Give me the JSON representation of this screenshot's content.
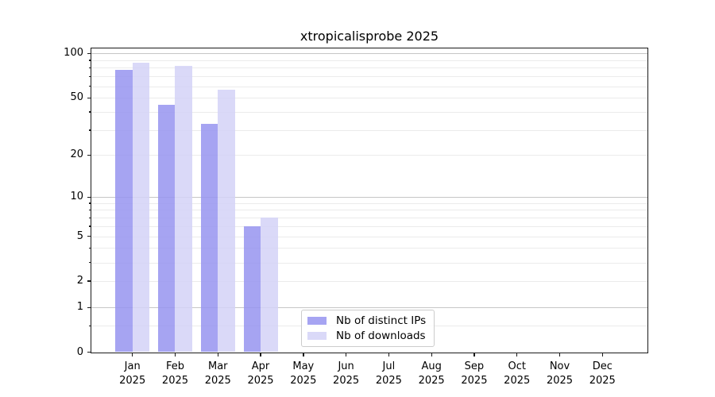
{
  "title": "xtropicalisprobe 2025",
  "chart_data": {
    "type": "bar",
    "title": "xtropicalisprobe 2025",
    "categories": [
      "Jan",
      "Feb",
      "Mar",
      "Apr",
      "May",
      "Jun",
      "Jul",
      "Aug",
      "Sep",
      "Oct",
      "Nov",
      "Dec"
    ],
    "x_tick_year": "2025",
    "series": [
      {
        "name": "Nb of distinct IPs",
        "color": "rgba(150,148,240,0.85)",
        "values": [
          78,
          45,
          33,
          6,
          0,
          0,
          0,
          0,
          0,
          0,
          0,
          0
        ]
      },
      {
        "name": "Nb of downloads",
        "color": "rgba(211,210,247,0.85)",
        "values": [
          87,
          82,
          57,
          7,
          0,
          0,
          0,
          0,
          0,
          0,
          0,
          0
        ]
      }
    ],
    "yscale": "log1p",
    "ylim": [
      0,
      107
    ],
    "yticks": [
      {
        "v": 100,
        "label": "100"
      },
      {
        "v": 50,
        "label": "50"
      },
      {
        "v": 20,
        "label": "20"
      },
      {
        "v": 10,
        "label": "10"
      },
      {
        "v": 5,
        "label": "5"
      },
      {
        "v": 2,
        "label": "2"
      },
      {
        "v": 1,
        "label": "1"
      },
      {
        "v": 0,
        "label": "0"
      }
    ],
    "yticks_minor": [
      0.5,
      3,
      4,
      6,
      7,
      8,
      9,
      30,
      40,
      60,
      70,
      80,
      90
    ],
    "grid": true,
    "grid_major_values": [
      1,
      10,
      100
    ],
    "grid_minor_values": [
      0.5,
      2,
      3,
      4,
      5,
      6,
      7,
      8,
      9,
      20,
      30,
      40,
      50,
      60,
      70,
      80,
      90
    ],
    "legend_position": "lower center"
  },
  "colors": {
    "bar_distinct_ips": "rgba(150,148,240,0.85)",
    "bar_downloads": "rgba(211,210,247,0.85)",
    "grid_major": "#c6c6c6",
    "grid_minor": "#ebebeb",
    "spine": "#1a1a1a",
    "text": "#000000",
    "legend_border": "#cccccc"
  }
}
